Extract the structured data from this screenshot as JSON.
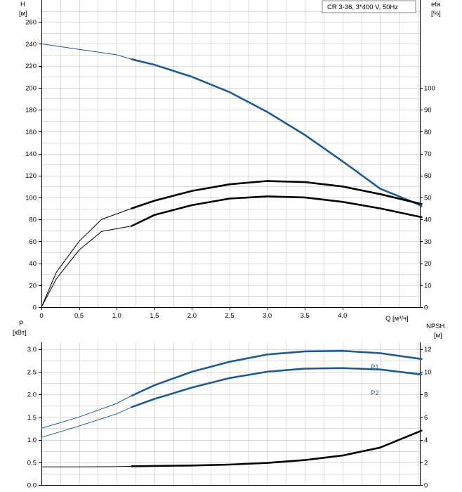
{
  "title_box": "CR 3-36, 3*400 V, 50Hz",
  "chart_data": [
    {
      "type": "line",
      "xlabel": "Q [м³/ч]",
      "xlim": [
        0,
        5.0
      ],
      "x_ticks": [
        "0",
        "0,5",
        "1,0",
        "1,5",
        "2,0",
        "2,5",
        "3,0",
        "3,5",
        "4,0"
      ],
      "ylabel_left": "H",
      "ylabel_left_unit": "[м]",
      "ylim_left": [
        0,
        280
      ],
      "y_ticks_left": [
        "0",
        "20",
        "40",
        "60",
        "80",
        "100",
        "120",
        "140",
        "160",
        "180",
        "200",
        "220",
        "240",
        "260"
      ],
      "ylabel_right": "eta",
      "ylabel_right_unit": "[%]",
      "ylim_right": [
        0,
        140
      ],
      "y_ticks_right": [
        "0",
        "10",
        "20",
        "30",
        "40",
        "50",
        "60",
        "70",
        "80",
        "90",
        "100"
      ],
      "grid": true,
      "series": [
        {
          "axis": "left",
          "color": "#1f5a96",
          "x": [
            0,
            0.5,
            1.0,
            1.2,
            1.5,
            2.0,
            2.5,
            3.0,
            3.5,
            4.0,
            4.5,
            5.0,
            5.05
          ],
          "values": [
            240,
            235,
            230,
            226,
            221,
            210,
            196,
            178,
            157,
            133,
            108,
            94,
            92
          ],
          "dim_until": 1.2
        },
        {
          "axis": "right",
          "color": "#000000",
          "x": [
            0,
            0.2,
            0.5,
            0.8,
            1.2,
            1.5,
            2.0,
            2.5,
            3.0,
            3.5,
            4.0,
            4.5,
            5.05
          ],
          "values": [
            0,
            16,
            30,
            40,
            45,
            48.5,
            53,
            56,
            57.5,
            57,
            55,
            51.5,
            47
          ],
          "dim_until": 1.2
        },
        {
          "axis": "right",
          "color": "#000000",
          "x": [
            0,
            0.2,
            0.5,
            0.8,
            1.2,
            1.5,
            2.0,
            2.5,
            3.0,
            3.5,
            4.0,
            4.5,
            5.05
          ],
          "values": [
            0,
            13,
            26,
            34.5,
            37,
            42,
            46.5,
            49.5,
            50.5,
            50,
            48,
            45,
            41
          ],
          "dim_until": 1.2
        }
      ]
    },
    {
      "type": "line",
      "xlim": [
        0,
        5.0
      ],
      "ylabel_left": "P",
      "ylabel_left_unit": "[кВт]",
      "ylim_left": [
        0,
        3.6
      ],
      "y_ticks_left": [
        "0.0",
        "0.5",
        "1.0",
        "1.5",
        "2.0",
        "2.5",
        "3.0"
      ],
      "ylabel_right": "NPSH",
      "ylabel_right_unit": "[м]",
      "ylim_right": [
        0,
        14.4
      ],
      "y_ticks_right": [
        "0",
        "2",
        "4",
        "6",
        "8",
        "10",
        "12"
      ],
      "grid": true,
      "series": [
        {
          "name": "P1",
          "axis": "left",
          "color": "#1f5a96",
          "x": [
            0,
            0.5,
            1.0,
            1.2,
            1.5,
            2.0,
            2.5,
            3.0,
            3.5,
            4.0,
            4.5,
            5.05
          ],
          "values": [
            1.25,
            1.5,
            1.8,
            1.97,
            2.2,
            2.5,
            2.72,
            2.88,
            2.95,
            2.96,
            2.91,
            2.78
          ],
          "dim_until": 1.2
        },
        {
          "name": "P2",
          "axis": "left",
          "color": "#1f5a96",
          "x": [
            0,
            0.5,
            1.0,
            1.2,
            1.5,
            2.0,
            2.5,
            3.0,
            3.5,
            4.0,
            4.5,
            5.05
          ],
          "values": [
            1.05,
            1.3,
            1.57,
            1.72,
            1.9,
            2.15,
            2.36,
            2.5,
            2.57,
            2.58,
            2.55,
            2.44
          ],
          "dim_until": 1.2
        },
        {
          "axis": "right",
          "color": "#000000",
          "x": [
            0,
            0.5,
            1.0,
            1.2,
            1.5,
            2.0,
            2.5,
            3.0,
            3.5,
            4.0,
            4.5,
            5.05
          ],
          "values": [
            1.6,
            1.6,
            1.62,
            1.65,
            1.68,
            1.72,
            1.8,
            1.95,
            2.2,
            2.6,
            3.3,
            4.8
          ],
          "dim_until": 1.2
        }
      ]
    }
  ]
}
